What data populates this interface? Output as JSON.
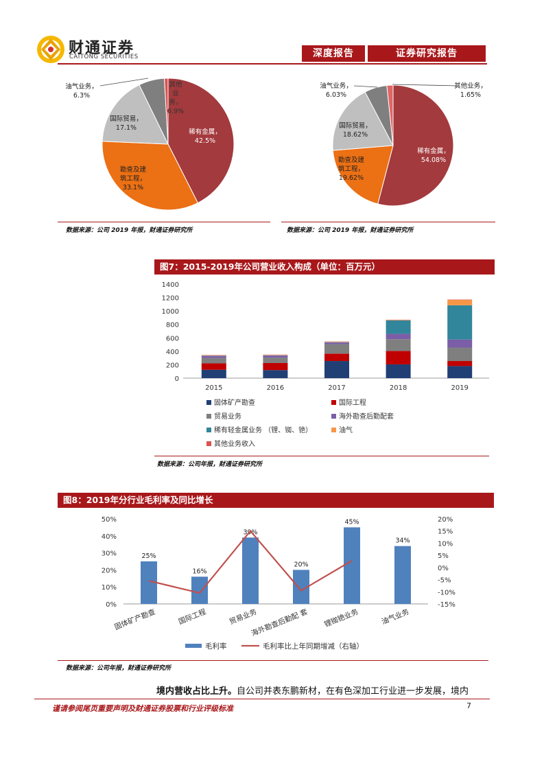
{
  "header": {
    "logo_name": "财通证券",
    "logo_sub": "CAITONG SECURITIES",
    "tag1": "深度报告",
    "tag2": "证券研究报告"
  },
  "pie_left": {
    "slices": [
      {
        "name": "稀有金属",
        "value": 42.5,
        "label": "稀有金属，42.5%",
        "color": "#a33a3d"
      },
      {
        "name": "勘查及建筑工程",
        "value": 33.1,
        "label": "勘查及建筑工程，33.1%",
        "color": "#ec7014"
      },
      {
        "name": "国际贸易",
        "value": 17.1,
        "label": "国际贸易，17.1%",
        "color": "#bfbfbf"
      },
      {
        "name": "油气业务",
        "value": 6.3,
        "label": "油气业务，6.3%",
        "color": "#7f7f7f"
      },
      {
        "name": "其他业务",
        "value": 0.9,
        "label": "其他业务，0.9%",
        "color": "#d9534f"
      }
    ],
    "source": "数据来源：公司 2019 年报，财通证券研究所"
  },
  "pie_right": {
    "slices": [
      {
        "name": "稀有金属",
        "value": 54.08,
        "label": "稀有金属，54.08%",
        "color": "#a33a3d"
      },
      {
        "name": "勘查及建筑工程",
        "value": 19.62,
        "label": "勘查及建筑工程，19.62%",
        "color": "#ec7014"
      },
      {
        "name": "国际贸易",
        "value": 18.62,
        "label": "国际贸易，18.62%",
        "color": "#bfbfbf"
      },
      {
        "name": "油气业务",
        "value": 6.03,
        "label": "油气业务，6.03%",
        "color": "#7f7f7f"
      },
      {
        "name": "其他业务",
        "value": 1.65,
        "label": "其他业务，1.65%",
        "color": "#e06666"
      }
    ],
    "source": "数据来源：公司 2019 年报，财通证券研究所"
  },
  "fig7": {
    "title": "图7：2015-2019年公司营业收入构成（单位：百万元）",
    "source": "数据来源：公司年报，财通证券研究所"
  },
  "fig8": {
    "title": "图8：2019年分行业毛利率及同比增长",
    "source": "数据来源：公司年报，财通证券研究所"
  },
  "chart_data": [
    {
      "type": "pie",
      "title": "",
      "categories": [
        "稀有金属",
        "勘查及建筑工程",
        "国际贸易",
        "油气业务",
        "其他业务"
      ],
      "values": [
        42.5,
        33.1,
        17.1,
        6.3,
        0.9
      ]
    },
    {
      "type": "pie",
      "title": "",
      "categories": [
        "稀有金属",
        "勘查及建筑工程",
        "国际贸易",
        "油气业务",
        "其他业务"
      ],
      "values": [
        54.08,
        19.62,
        18.62,
        6.03,
        1.65
      ]
    },
    {
      "type": "bar",
      "stacked": true,
      "title": "2015-2019年公司营业收入构成（单位：百万元）",
      "categories": [
        "2015",
        "2016",
        "2017",
        "2018",
        "2019"
      ],
      "ylim": [
        0,
        1400
      ],
      "yticks": [
        "0",
        "200",
        "400",
        "600",
        "800",
        "1000",
        "1200",
        "1400"
      ],
      "series": [
        {
          "name": "固体矿产勘查",
          "color": "#1f3f75",
          "values": [
            125,
            120,
            255,
            205,
            180
          ]
        },
        {
          "name": "国际工程",
          "color": "#c00000",
          "values": [
            95,
            105,
            110,
            200,
            75
          ]
        },
        {
          "name": "贸易业务",
          "color": "#7f7f7f",
          "values": [
            80,
            80,
            140,
            175,
            200
          ]
        },
        {
          "name": "海外勘查后勤配套",
          "color": "#7b5ea7",
          "values": [
            30,
            30,
            25,
            80,
            120
          ]
        },
        {
          "name": "稀有轻金属业务 （锂、铷、铯）",
          "color": "#31869b",
          "values": [
            5,
            5,
            5,
            200,
            510
          ]
        },
        {
          "name": "油气",
          "color": "#f79646",
          "values": [
            5,
            5,
            5,
            5,
            80
          ]
        },
        {
          "name": "其他业务收入",
          "color": "#d9534f",
          "values": [
            5,
            5,
            5,
            5,
            5
          ]
        }
      ]
    },
    {
      "type": "bar",
      "title": "2019年分行业毛利率及同比增长",
      "categories": [
        "固体矿产勘查",
        "国际工程",
        "贸易业务",
        "海外勘查后勤配 套",
        "锂铷铯业务",
        "油气业务"
      ],
      "ylim": [
        0,
        50
      ],
      "yticks": [
        "0%",
        "10%",
        "20%",
        "30%",
        "40%",
        "50%"
      ],
      "y2lim": [
        -15,
        20
      ],
      "y2ticks": [
        "-15%",
        "-10%",
        "-5%",
        "0%",
        "5%",
        "10%",
        "15%",
        "20%"
      ],
      "series": [
        {
          "name": "毛利率",
          "color": "#4f81bd",
          "values": [
            25,
            16,
            39,
            20,
            45,
            34
          ],
          "labels": [
            "25%",
            "16%",
            "39%",
            "20%",
            "45%",
            "34%"
          ]
        },
        {
          "name": "毛利率比上年同期增减（右轴）",
          "color": "#c0504d",
          "axis": "right",
          "values": [
            -5.5,
            -10.5,
            15,
            -9.5,
            2.8,
            null
          ]
        }
      ]
    }
  ],
  "body": {
    "bold_lead": "境内营收占比上升。",
    "text": "自公司并表东鹏新材，在有色深加工行业进一步发展，境内"
  },
  "footer": {
    "disclaimer": "谨请参阅尾页重要声明及财通证券股票和行业评级标准",
    "page": "7"
  }
}
